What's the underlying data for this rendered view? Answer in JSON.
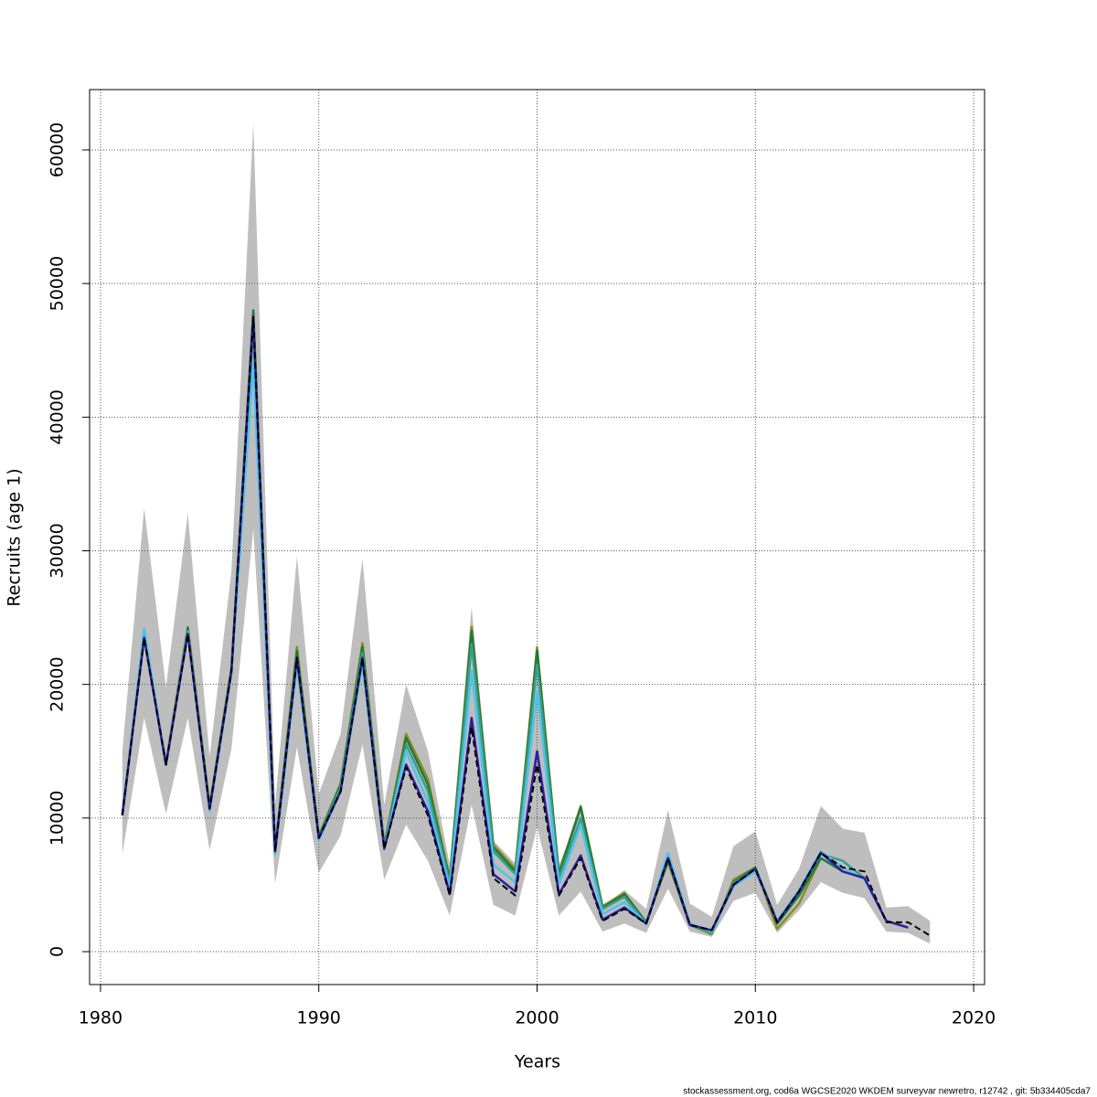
{
  "chart_data": {
    "type": "line",
    "xlabel": "Years",
    "ylabel": "Recruits (age 1)",
    "footnote": "stockassessment.org, cod6a WGCSE2020 WKDEM surveyvar newretro, r12742 , git: 5b334405cda7",
    "xlim": [
      1979.5,
      2020.5
    ],
    "ylim": [
      -2463,
      64515
    ],
    "xticks": [
      1980,
      1990,
      2000,
      2010,
      2020
    ],
    "yticks": [
      0,
      10000,
      20000,
      30000,
      40000,
      50000,
      60000
    ],
    "grid": true,
    "x": [
      1981,
      1982,
      1983,
      1984,
      1985,
      1986,
      1987,
      1988,
      1989,
      1990,
      1991,
      1992,
      1993,
      1994,
      1995,
      1996,
      1997,
      1998,
      1999,
      2000,
      2001,
      2002,
      2003,
      2004,
      2005,
      2006,
      2007,
      2008,
      2009,
      2010,
      2011,
      2012,
      2013,
      2014,
      2015,
      2016,
      2017,
      2018
    ],
    "band": {
      "color": "#bebebe",
      "upper": [
        15000,
        33200,
        19800,
        32800,
        14600,
        28500,
        62000,
        11000,
        29600,
        11800,
        16300,
        29400,
        11000,
        20000,
        15000,
        6500,
        25800,
        8300,
        6600,
        20500,
        6500,
        10500,
        3400,
        4600,
        3200,
        10600,
        3600,
        2600,
        7900,
        9000,
        3500,
        6200,
        10900,
        9200,
        8900,
        3300,
        3400,
        2300
      ],
      "lower": [
        7300,
        17500,
        10300,
        17500,
        7600,
        15200,
        31600,
        5100,
        15300,
        5900,
        8700,
        15500,
        5400,
        9500,
        6800,
        2700,
        11000,
        3500,
        2700,
        9300,
        2700,
        4500,
        1500,
        2100,
        1400,
        4700,
        1500,
        1100,
        3800,
        4400,
        1400,
        3100,
        5200,
        4400,
        4000,
        1500,
        1400,
        600
      ]
    },
    "series": [
      {
        "color": "#8a8f1e",
        "values": [
          10300,
          23700,
          14100,
          24300,
          10900,
          21300,
          47600,
          7700,
          22800,
          8700,
          12600,
          23100,
          8000,
          16300,
          12900,
          5500,
          24300,
          8000,
          6200,
          22800,
          5900,
          10900,
          3400,
          4400,
          2200,
          6700,
          2000,
          1300,
          5400,
          6300,
          1700,
          3600,
          7000,
          null,
          null,
          null,
          null,
          null
        ]
      },
      {
        "color": "#1e7b3a",
        "values": [
          10300,
          23600,
          14000,
          24200,
          10800,
          21200,
          48000,
          7600,
          22500,
          8600,
          12500,
          22800,
          7900,
          16000,
          12500,
          5300,
          24000,
          7800,
          6000,
          22500,
          5800,
          10800,
          3300,
          4300,
          2200,
          6800,
          2000,
          1400,
          5200,
          6300,
          2100,
          4200,
          7000,
          6000,
          null,
          null,
          null,
          null
        ]
      },
      {
        "color": "#3a9e8c",
        "values": [
          10200,
          23500,
          14000,
          24000,
          10700,
          21100,
          46500,
          7500,
          22000,
          8500,
          12300,
          22400,
          7800,
          15500,
          12000,
          5100,
          23000,
          7500,
          5800,
          21500,
          5500,
          10000,
          3200,
          4100,
          2100,
          7000,
          2000,
          1400,
          5100,
          6200,
          2300,
          4500,
          7300,
          6800,
          5500,
          null,
          null,
          null
        ]
      },
      {
        "color": "#4fc3e8",
        "values": [
          10200,
          24200,
          14000,
          23900,
          10500,
          20900,
          44000,
          7300,
          21500,
          8300,
          12000,
          21500,
          7700,
          15000,
          11200,
          4800,
          21000,
          6500,
          5200,
          19500,
          5000,
          9500,
          2800,
          3700,
          2100,
          7400,
          2100,
          1500,
          4900,
          6000,
          2300,
          4600,
          7500,
          6300,
          5400,
          2300,
          null,
          null
        ]
      },
      {
        "color": "#2e1e9e",
        "values": [
          10200,
          23500,
          14000,
          23800,
          10700,
          21000,
          47500,
          7500,
          22000,
          8500,
          12000,
          22000,
          7700,
          14000,
          10500,
          4300,
          17500,
          5800,
          4500,
          15000,
          4300,
          7200,
          2400,
          3300,
          2100,
          7000,
          2000,
          1600,
          5000,
          6200,
          2200,
          4500,
          7400,
          6000,
          5500,
          2300,
          1800,
          null
        ]
      },
      {
        "color": "#000000",
        "dashed": true,
        "values": [
          10200,
          23500,
          14000,
          23800,
          10700,
          21000,
          47500,
          7500,
          22000,
          8500,
          12000,
          22000,
          7700,
          13800,
          10200,
          4200,
          16800,
          5500,
          4200,
          14000,
          4200,
          7000,
          2300,
          3200,
          2100,
          7000,
          2000,
          1600,
          5000,
          6200,
          2200,
          4500,
          7400,
          6300,
          6000,
          2200,
          2200,
          1200
        ]
      }
    ]
  }
}
